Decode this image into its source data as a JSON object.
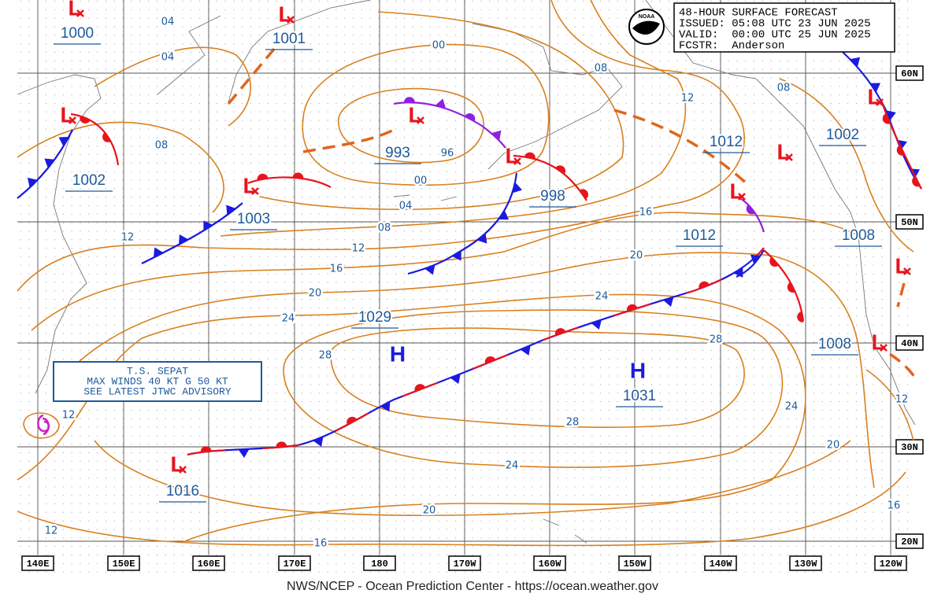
{
  "header": {
    "lines": [
      "48-HOUR SURFACE FORECAST",
      "ISSUED: 05:08 UTC 23 JUN 2025",
      "VALID:  00:00 UTC 25 JUN 2025",
      "FCSTR:  Anderson"
    ]
  },
  "logo": "NOAA",
  "footer": "NWS/NCEP - Ocean Prediction Center - https://ocean.weather.gov",
  "longitudes": [
    "140E",
    "150E",
    "160E",
    "170E",
    "180",
    "170W",
    "160W",
    "150W",
    "140W",
    "130W",
    "120W"
  ],
  "latitudes": [
    "60N",
    "50N",
    "40N",
    "30N",
    "20N"
  ],
  "pressure_centers": [
    {
      "symbol": "L",
      "pressure": "1000"
    },
    {
      "symbol": "L",
      "pressure": "1001"
    },
    {
      "symbol": "L",
      "pressure": "1002"
    },
    {
      "symbol": "L",
      "pressure": "993"
    },
    {
      "symbol": "L",
      "pressure": "998"
    },
    {
      "symbol": "L",
      "pressure": "1003"
    },
    {
      "symbol": "L",
      "pressure": "1012"
    },
    {
      "symbol": "L",
      "pressure": "1002"
    },
    {
      "symbol": "L",
      "pressure": "1012"
    },
    {
      "symbol": "L",
      "pressure": "1008"
    },
    {
      "symbol": "L",
      "pressure": "1008"
    },
    {
      "symbol": "H",
      "pressure": "1029"
    },
    {
      "symbol": "H",
      "pressure": "1031"
    },
    {
      "symbol": "L",
      "pressure": "1016"
    }
  ],
  "isobar_labels": [
    "04",
    "04",
    "00",
    "08",
    "08",
    "12",
    "08",
    "96",
    "00",
    "04",
    "08",
    "12",
    "16",
    "20",
    "24",
    "28",
    "16",
    "20",
    "24",
    "28",
    "28",
    "24",
    "20",
    "16",
    "12",
    "12",
    "12",
    "24",
    "20",
    "16",
    "12"
  ],
  "storm_advisory": {
    "lines": [
      "T.S. SEPAT",
      "MAX WINDS 40 KT G 50 KT",
      "SEE LATEST JTWC ADVISORY"
    ]
  }
}
